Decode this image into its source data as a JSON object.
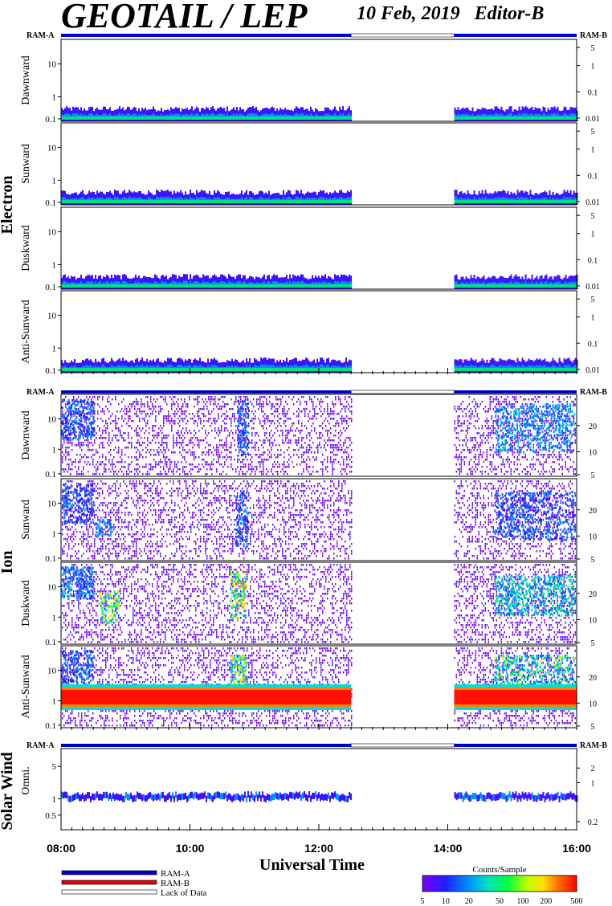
{
  "header": {
    "title": "GEOTAIL / LEP",
    "date": "10 Feb, 2019",
    "editor": "Editor-B"
  },
  "ram_labels": {
    "left": "RAM-A",
    "right": "RAM-B"
  },
  "groups": [
    {
      "name": "Electron",
      "panels": [
        "Dawnward",
        "Sunward",
        "Duskward",
        "Anti-Sunward"
      ]
    },
    {
      "name": "Ion",
      "panels": [
        "Dawnward",
        "Sunward",
        "Duskward",
        "Anti-Sunward"
      ]
    },
    {
      "name": "Solar Wind",
      "panels": [
        "Omni."
      ]
    }
  ],
  "chart_data": {
    "type": "heatmap",
    "title": "GEOTAIL / LEP  10 Feb, 2019  Editor-B",
    "xlabel": "Universal Time",
    "x_ticks": [
      "08:00",
      "10:00",
      "12:00",
      "14:00",
      "16:00"
    ],
    "x_range_hours": [
      8,
      16
    ],
    "data_gap_hours": [
      12.5,
      14.1
    ],
    "electron_left_axis": {
      "ticks": [
        "0.1",
        "1",
        "10"
      ],
      "scale": "log"
    },
    "electron_right_axis": {
      "ticks": [
        "0.01",
        "0.1",
        "1",
        "5"
      ],
      "scale": "log"
    },
    "ion_left_axis": {
      "ticks": [
        "0.1",
        "1",
        "10"
      ],
      "scale": "log"
    },
    "ion_right_axis": {
      "ticks": [
        "5",
        "10",
        "20"
      ],
      "scale": "log"
    },
    "sw_left_axis": {
      "ticks": [
        "0.5",
        "1",
        "5"
      ],
      "scale": "log"
    },
    "sw_right_axis": {
      "ticks": [
        "0.2",
        "1",
        "2"
      ],
      "scale": "log"
    },
    "colorbar": {
      "title": "Counts/Sample",
      "ticks": [
        "5",
        "10",
        "20",
        "50",
        "100",
        "200",
        "500"
      ],
      "scale": "log",
      "range": [
        5,
        500
      ]
    },
    "legend": [
      {
        "label": "RAM-A",
        "color": "#0000c8"
      },
      {
        "label": "RAM-B",
        "color": "#e00000"
      },
      {
        "label": "Lack of Data",
        "color": "#ffffff"
      }
    ]
  }
}
